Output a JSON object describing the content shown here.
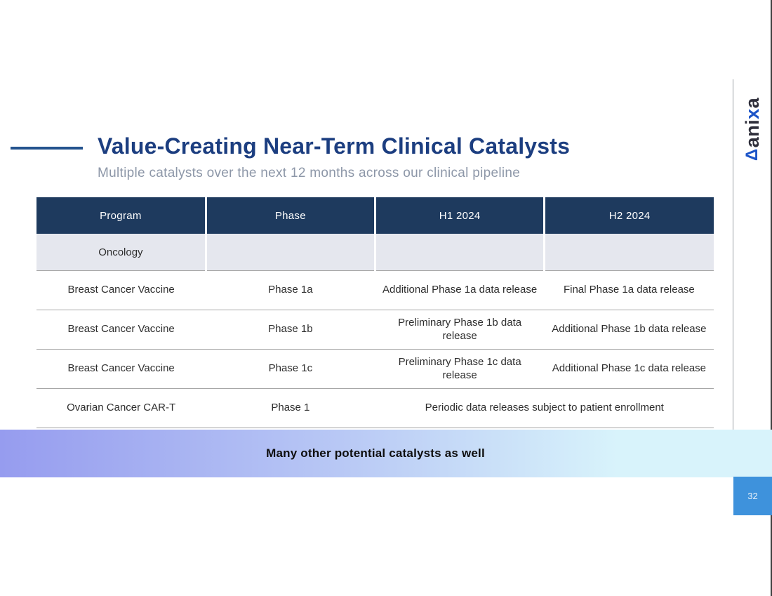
{
  "slide": {
    "title": "Value-Creating Near-Term Clinical Catalysts",
    "subtitle": "Multiple catalysts over the next 12 months across our clinical pipeline",
    "page_number": "32"
  },
  "logo": {
    "mark": "Δ",
    "text_before_x": "ani",
    "text_x": "x",
    "text_after_x": "a"
  },
  "table": {
    "headers": [
      "Program",
      "Phase",
      "H1 2024",
      "H2 2024"
    ],
    "section_label": "Oncology",
    "rows": [
      {
        "program": "Breast Cancer Vaccine",
        "phase": "Phase 1a",
        "h1": "Additional Phase 1a data release",
        "h2": "Final Phase 1a data release"
      },
      {
        "program": "Breast Cancer Vaccine",
        "phase": "Phase 1b",
        "h1": "Preliminary Phase 1b data release",
        "h2": "Additional Phase 1b data release"
      },
      {
        "program": "Breast Cancer Vaccine",
        "phase": "Phase 1c",
        "h1": "Preliminary Phase 1c data release",
        "h2": "Additional Phase 1c data release"
      },
      {
        "program": "Ovarian Cancer CAR-T",
        "phase": "Phase 1",
        "h1h2": "Periodic data releases subject to patient enrollment"
      }
    ]
  },
  "banner": {
    "text": "Many other potential catalysts as well"
  },
  "colors": {
    "header_bg": "#1e3a5e",
    "title_text": "#1c3e80",
    "subtitle_text": "#8d97a8",
    "section_row_bg": "#e5e7ee",
    "row_border": "#a6a6a6",
    "banner_gradient_left": "#969cef",
    "banner_gradient_right": "#d8f3fb",
    "page_box_bg": "#3e92dc",
    "logo_blue": "#1d55c8",
    "logo_dark": "#2e2e3a"
  }
}
